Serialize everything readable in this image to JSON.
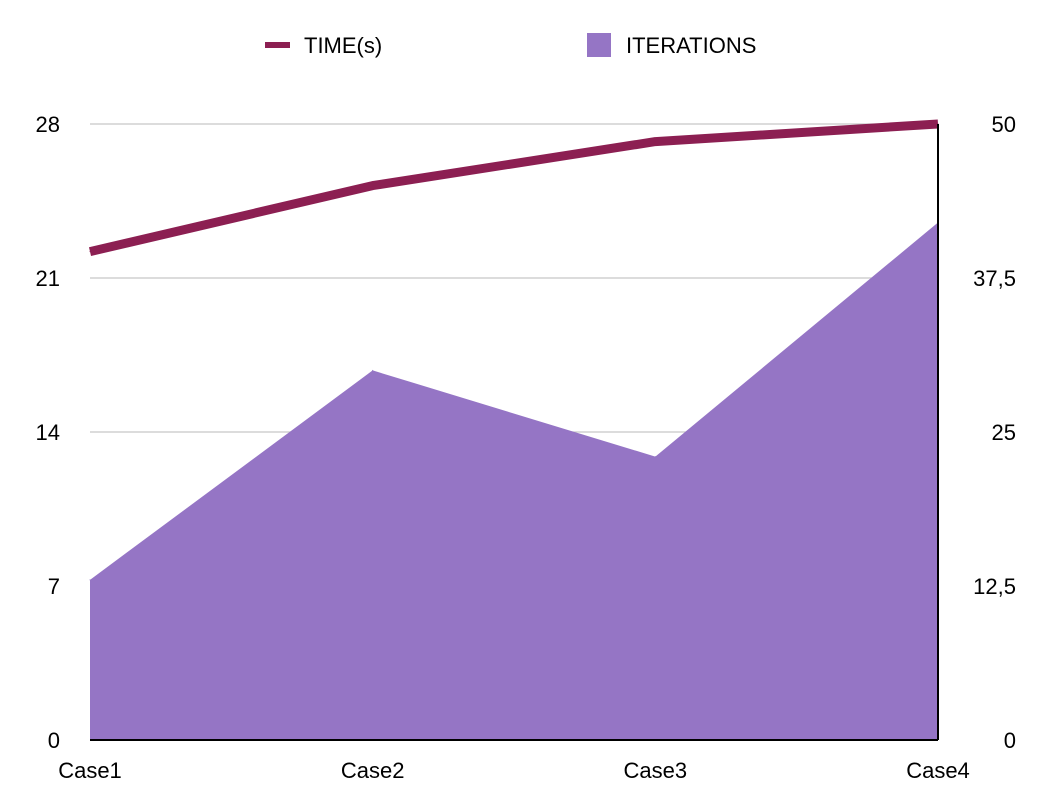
{
  "chart_data": {
    "type": "area+line",
    "title": "",
    "categories": [
      "Case1",
      "Case2",
      "Case3",
      "Case4"
    ],
    "series": [
      {
        "name": "TIME(s)",
        "type": "line",
        "axis": "left",
        "color": "#8c1f52",
        "values": [
          22.2,
          25.2,
          27.2,
          28.0
        ]
      },
      {
        "name": "ITERATIONS",
        "type": "area",
        "axis": "right",
        "color": "#9575c5",
        "values": [
          13,
          30,
          23,
          42
        ]
      }
    ],
    "y_left": {
      "min": 0,
      "max": 28,
      "ticks": [
        0,
        7,
        14,
        21,
        28
      ],
      "tick_labels": [
        "0",
        "7",
        "14",
        "21",
        "28"
      ]
    },
    "y_right": {
      "min": 0,
      "max": 50,
      "ticks": [
        0,
        12.5,
        25,
        37.5,
        50
      ],
      "tick_labels": [
        "0",
        "12,5",
        "25",
        "37,5",
        "50"
      ]
    },
    "grid": true,
    "legend": "top-center"
  }
}
